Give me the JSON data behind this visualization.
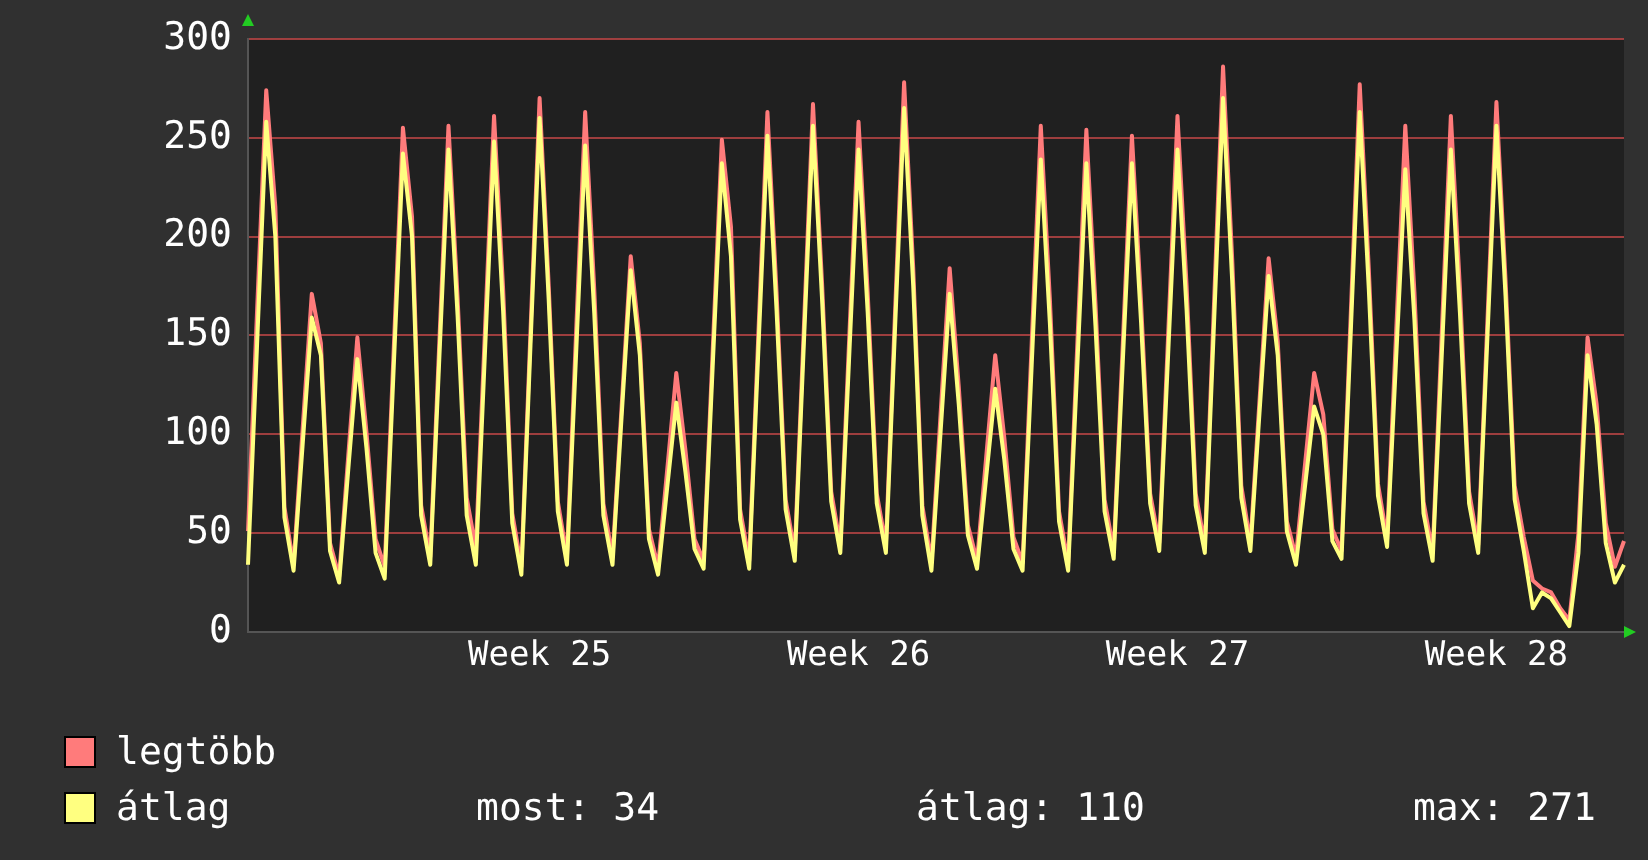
{
  "chart_data": {
    "type": "line",
    "categories": [
      null,
      null,
      null,
      null,
      null,
      null,
      null,
      null,
      null,
      null,
      null,
      null,
      null,
      null,
      null,
      null,
      null,
      null,
      null,
      null,
      null,
      null,
      null,
      null,
      null,
      null,
      null,
      null,
      null,
      null,
      null,
      null,
      "Week 25",
      null,
      null,
      null,
      null,
      null,
      null,
      null,
      null,
      null,
      null,
      null,
      null,
      null,
      null,
      null,
      null,
      null,
      null,
      null,
      null,
      null,
      null,
      null,
      null,
      null,
      null,
      null,
      null,
      null,
      null,
      null,
      null,
      null,
      null,
      "Week 26",
      null,
      null,
      null,
      null,
      null,
      null,
      null,
      null,
      null,
      null,
      null,
      null,
      null,
      null,
      null,
      null,
      null,
      null,
      null,
      null,
      null,
      null,
      null,
      null,
      null,
      null,
      null,
      null,
      null,
      null,
      null,
      null,
      null,
      null,
      "Week 27",
      null,
      null,
      null,
      null,
      null,
      null,
      null,
      null,
      null,
      null,
      null,
      null,
      null,
      null,
      null,
      null,
      null,
      null,
      null,
      null,
      null,
      null,
      null,
      null,
      null,
      null,
      null,
      null,
      null,
      null,
      null,
      null,
      null,
      null,
      "Week 28",
      null,
      null,
      null,
      null,
      null,
      null,
      null,
      null,
      null,
      null,
      null,
      null,
      null,
      null
    ],
    "series": [
      {
        "name": "legtöbb",
        "color": "#ff7b7b",
        "values": [
          51,
          163,
          274,
          215,
          63,
          34,
          103,
          171,
          146,
          45,
          28,
          89,
          149,
          101,
          47,
          33,
          144,
          255,
          210,
          64,
          38,
          147,
          256,
          169,
          68,
          42,
          152,
          261,
          173,
          60,
          33,
          152,
          270,
          175,
          66,
          38,
          151,
          263,
          173,
          65,
          38,
          114,
          190,
          146,
          52,
          33,
          82,
          131,
          92,
          47,
          36,
          143,
          249,
          205,
          62,
          36,
          150,
          263,
          172,
          67,
          40,
          154,
          267,
          176,
          71,
          44,
          151,
          258,
          172,
          70,
          44,
          161,
          278,
          184,
          64,
          35,
          110,
          184,
          124,
          54,
          36,
          88,
          140,
          98,
          48,
          35,
          146,
          256,
          168,
          61,
          35,
          145,
          254,
          166,
          67,
          41,
          146,
          251,
          167,
          70,
          45,
          153,
          261,
          175,
          70,
          44,
          165,
          286,
          189,
          74,
          45,
          117,
          189,
          147,
          56,
          38,
          85,
          131,
          110,
          52,
          41,
          159,
          277,
          183,
          75,
          47,
          152,
          256,
          172,
          66,
          40,
          151,
          261,
          173,
          71,
          44,
          156,
          268,
          178,
          74,
          48,
          26,
          22,
          20,
          12,
          6,
          50,
          149,
          115,
          55,
          33,
          46
        ]
      },
      {
        "name": "átlag",
        "color": "#ffff80",
        "values": [
          34,
          146,
          258,
          200,
          58,
          31,
          95,
          159,
          140,
          41,
          25,
          82,
          138,
          93,
          40,
          27,
          135,
          242,
          200,
          59,
          34,
          139,
          244,
          160,
          59,
          34,
          141,
          248,
          162,
          55,
          29,
          145,
          260,
          168,
          61,
          34,
          140,
          246,
          161,
          59,
          34,
          109,
          183,
          140,
          47,
          29,
          73,
          116,
          81,
          42,
          32,
          135,
          237,
          190,
          57,
          32,
          142,
          251,
          163,
          62,
          36,
          146,
          256,
          168,
          66,
          40,
          142,
          244,
          162,
          65,
          40,
          153,
          265,
          175,
          59,
          31,
          101,
          171,
          115,
          49,
          32,
          78,
          123,
          87,
          42,
          31,
          135,
          239,
          156,
          56,
          31,
          134,
          237,
          155,
          61,
          37,
          137,
          237,
          157,
          65,
          41,
          143,
          244,
          163,
          64,
          40,
          155,
          270,
          178,
          68,
          41,
          111,
          180,
          140,
          51,
          34,
          74,
          114,
          100,
          46,
          37,
          150,
          263,
          173,
          69,
          43,
          139,
          234,
          158,
          60,
          36,
          140,
          244,
          161,
          65,
          40,
          148,
          256,
          170,
          67,
          41,
          12,
          20,
          17,
          10,
          3,
          40,
          140,
          105,
          45,
          25,
          34
        ]
      }
    ],
    "ylim": [
      0,
      300
    ],
    "yticks": [
      0,
      50,
      100,
      150,
      200,
      250,
      300
    ],
    "grid": "y",
    "legend": "bottom left",
    "marker": "none",
    "line_style": "solid",
    "annotations": [
      "most: 34",
      "átlag: 110",
      "max: 271"
    ]
  }
}
